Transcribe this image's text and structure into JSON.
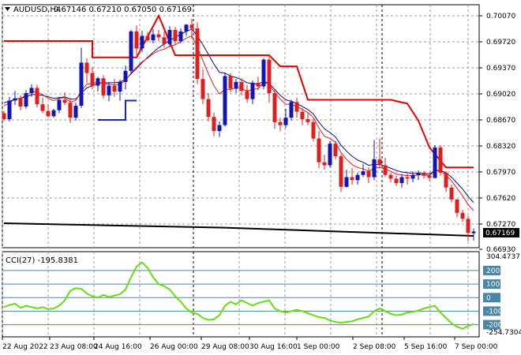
{
  "header": {
    "symbol": "AUDUSD,H4",
    "values": "0.67146 0.67210 0.67050 0.67169"
  },
  "price_axis": {
    "labels": [
      "0.70070",
      "0.69720",
      "0.69370",
      "0.69020",
      "0.68670",
      "0.68320",
      "0.67970",
      "0.67620",
      "0.67270",
      "0.66930"
    ],
    "current_price": "0.67169"
  },
  "indicator": {
    "title": "CCI(27) -195.8381",
    "max_label": "304.4737",
    "min_label": "-254.7304",
    "levels": [
      "200",
      "100",
      "0",
      "-100",
      "-200"
    ]
  },
  "time_axis": {
    "labels": [
      "22 Aug 2022",
      "23 Aug 08:00",
      "24 Aug 16:00",
      "26 Aug 00:00",
      "29 Aug 08:00",
      "30 Aug 16:00",
      "1 Sep 00:00",
      "2 Sep 08:00",
      "5 Sep 16:00",
      "7 Sep 00:00"
    ]
  },
  "colors": {
    "bull": "#1414b4",
    "bear": "#e01e1e",
    "ema_fast": "#e01e1e",
    "ema_slow": "#0c0c78",
    "stop_line_red": "#e80000",
    "stop_line_blue": "#1428c8",
    "long_ma": "#000000",
    "cci": "#66dd11",
    "level_line": "#4a86a8",
    "grid": "#9a9a9a"
  },
  "chart_data": {
    "type": "candlestick",
    "candles": [
      [
        0.6876,
        0.6879,
        0.6866,
        0.6868
      ],
      [
        0.6868,
        0.6898,
        0.6865,
        0.6893
      ],
      [
        0.6893,
        0.6906,
        0.6887,
        0.6896
      ],
      [
        0.6896,
        0.69,
        0.688,
        0.6885
      ],
      [
        0.6885,
        0.6907,
        0.6882,
        0.6903
      ],
      [
        0.6903,
        0.6915,
        0.6898,
        0.691
      ],
      [
        0.691,
        0.6914,
        0.6884,
        0.6888
      ],
      [
        0.6888,
        0.6897,
        0.6876,
        0.6879
      ],
      [
        0.6879,
        0.6888,
        0.687,
        0.6872
      ],
      [
        0.6872,
        0.6882,
        0.687,
        0.688
      ],
      [
        0.688,
        0.6898,
        0.6876,
        0.6894
      ],
      [
        0.6894,
        0.6904,
        0.6887,
        0.689
      ],
      [
        0.689,
        0.6897,
        0.6863,
        0.687
      ],
      [
        0.687,
        0.689,
        0.6866,
        0.6886
      ],
      [
        0.6886,
        0.6964,
        0.6883,
        0.6944
      ],
      [
        0.6944,
        0.695,
        0.6917,
        0.693
      ],
      [
        0.693,
        0.6938,
        0.6908,
        0.6913
      ],
      [
        0.6913,
        0.6925,
        0.6905,
        0.6923
      ],
      [
        0.6923,
        0.6927,
        0.6896,
        0.69
      ],
      [
        0.69,
        0.6918,
        0.6892,
        0.6913
      ],
      [
        0.6913,
        0.6922,
        0.6898,
        0.6905
      ],
      [
        0.6905,
        0.6921,
        0.6893,
        0.6918
      ],
      [
        0.6918,
        0.694,
        0.6908,
        0.6933
      ],
      [
        0.6933,
        0.6988,
        0.6929,
        0.6986
      ],
      [
        0.6986,
        0.6994,
        0.6954,
        0.6963
      ],
      [
        0.6963,
        0.6987,
        0.6958,
        0.698
      ],
      [
        0.698,
        0.6985,
        0.6972,
        0.6974
      ],
      [
        0.6974,
        0.6989,
        0.697,
        0.6982
      ],
      [
        0.6982,
        0.6988,
        0.6973,
        0.6978
      ],
      [
        0.6978,
        0.6986,
        0.6964,
        0.6969
      ],
      [
        0.6969,
        0.6993,
        0.6965,
        0.6988
      ],
      [
        0.6988,
        0.6992,
        0.6968,
        0.6973
      ],
      [
        0.6973,
        0.699,
        0.697,
        0.6986
      ],
      [
        0.6986,
        0.6996,
        0.698,
        0.6995
      ],
      [
        0.6995,
        0.7003,
        0.6976,
        0.699
      ],
      [
        0.699,
        0.6998,
        0.6915,
        0.6922
      ],
      [
        0.6922,
        0.6935,
        0.6888,
        0.6895
      ],
      [
        0.6895,
        0.6903,
        0.6865,
        0.6871
      ],
      [
        0.6871,
        0.6877,
        0.6845,
        0.6852
      ],
      [
        0.6852,
        0.6865,
        0.6844,
        0.686
      ],
      [
        0.686,
        0.693,
        0.6858,
        0.6926
      ],
      [
        0.6926,
        0.693,
        0.6904,
        0.6909
      ],
      [
        0.6909,
        0.6922,
        0.6903,
        0.6918
      ],
      [
        0.6918,
        0.6923,
        0.69,
        0.6906
      ],
      [
        0.6906,
        0.6914,
        0.689,
        0.6895
      ],
      [
        0.6895,
        0.692,
        0.6888,
        0.6917
      ],
      [
        0.6917,
        0.6925,
        0.6907,
        0.6912
      ],
      [
        0.6912,
        0.695,
        0.6908,
        0.6948
      ],
      [
        0.6948,
        0.6952,
        0.689,
        0.6903
      ],
      [
        0.6903,
        0.6909,
        0.6855,
        0.6864
      ],
      [
        0.6864,
        0.687,
        0.6852,
        0.686
      ],
      [
        0.686,
        0.6882,
        0.6856,
        0.687
      ],
      [
        0.687,
        0.6894,
        0.6866,
        0.6891
      ],
      [
        0.6891,
        0.6897,
        0.687,
        0.6878
      ],
      [
        0.6878,
        0.6883,
        0.686,
        0.6868
      ],
      [
        0.6868,
        0.6876,
        0.686,
        0.6864
      ],
      [
        0.6864,
        0.6868,
        0.6838,
        0.6842
      ],
      [
        0.6842,
        0.6852,
        0.6802,
        0.681
      ],
      [
        0.681,
        0.682,
        0.68,
        0.6806
      ],
      [
        0.6806,
        0.6839,
        0.6803,
        0.6835
      ],
      [
        0.6835,
        0.6839,
        0.6814,
        0.6818
      ],
      [
        0.6818,
        0.6821,
        0.677,
        0.6777
      ],
      [
        0.6777,
        0.68,
        0.6776,
        0.679
      ],
      [
        0.679,
        0.6802,
        0.678,
        0.6786
      ],
      [
        0.6786,
        0.6796,
        0.678,
        0.6793
      ],
      [
        0.6793,
        0.6808,
        0.679,
        0.6798
      ],
      [
        0.6798,
        0.6803,
        0.6782,
        0.679
      ],
      [
        0.679,
        0.684,
        0.6786,
        0.6814
      ],
      [
        0.6814,
        0.6842,
        0.6802,
        0.6806
      ],
      [
        0.6806,
        0.6816,
        0.679,
        0.6793
      ],
      [
        0.6793,
        0.6796,
        0.6783,
        0.6788
      ],
      [
        0.6788,
        0.6792,
        0.6778,
        0.6782
      ],
      [
        0.6782,
        0.6794,
        0.6776,
        0.679
      ],
      [
        0.679,
        0.6795,
        0.678,
        0.6788
      ],
      [
        0.6788,
        0.6798,
        0.6783,
        0.6793
      ],
      [
        0.6793,
        0.6799,
        0.6786,
        0.6796
      ],
      [
        0.6796,
        0.6798,
        0.6788,
        0.6792
      ],
      [
        0.6792,
        0.6796,
        0.6785,
        0.6789
      ],
      [
        0.6789,
        0.6833,
        0.6788,
        0.683
      ],
      [
        0.683,
        0.6833,
        0.6792,
        0.6796
      ],
      [
        0.6796,
        0.6798,
        0.677,
        0.6776
      ],
      [
        0.6776,
        0.678,
        0.6756,
        0.676
      ],
      [
        0.676,
        0.6761,
        0.6736,
        0.6742
      ],
      [
        0.6742,
        0.6746,
        0.673,
        0.6734
      ],
      [
        0.6734,
        0.6738,
        0.6704,
        0.6715
      ],
      [
        0.67146,
        0.6721,
        0.6705,
        0.67169
      ]
    ],
    "ema_fast": [
      0.6886,
      0.689,
      0.6895,
      0.6896,
      0.69,
      0.6905,
      0.6904,
      0.6901,
      0.6896,
      0.6893,
      0.6896,
      0.6897,
      0.6891,
      0.6893,
      0.6906,
      0.6915,
      0.6916,
      0.6918,
      0.6916,
      0.6915,
      0.6914,
      0.6915,
      0.692,
      0.693,
      0.6938,
      0.6945,
      0.695,
      0.6956,
      0.696,
      0.6962,
      0.6966,
      0.6968,
      0.6972,
      0.6977,
      0.698,
      0.6965,
      0.6947,
      0.6929,
      0.6913,
      0.6902,
      0.6908,
      0.6908,
      0.691,
      0.6909,
      0.6906,
      0.6908,
      0.6909,
      0.6918,
      0.6915,
      0.6904,
      0.6895,
      0.6888,
      0.6888,
      0.6885,
      0.6881,
      0.6877,
      0.687,
      0.6856,
      0.6845,
      0.6842,
      0.6837,
      0.6823,
      0.6814,
      0.6807,
      0.6803,
      0.6801,
      0.6798,
      0.6802,
      0.6803,
      0.6801,
      0.6798,
      0.6794,
      0.6793,
      0.6792,
      0.6792,
      0.6793,
      0.6793,
      0.6792,
      0.6799,
      0.6798,
      0.6793,
      0.6785,
      0.6775,
      0.6765,
      0.6753,
      0.6745
    ],
    "ema_slow": [
      0.689,
      0.6892,
      0.6895,
      0.6896,
      0.6898,
      0.6901,
      0.6901,
      0.69,
      0.6898,
      0.6896,
      0.6897,
      0.6898,
      0.6895,
      0.6895,
      0.6903,
      0.691,
      0.6913,
      0.6916,
      0.6917,
      0.6917,
      0.6917,
      0.6918,
      0.6921,
      0.6929,
      0.6936,
      0.6944,
      0.6951,
      0.6958,
      0.6964,
      0.6969,
      0.6974,
      0.6978,
      0.6982,
      0.6986,
      0.6989,
      0.698,
      0.6968,
      0.6955,
      0.6942,
      0.6931,
      0.693,
      0.6926,
      0.6924,
      0.6921,
      0.6917,
      0.6916,
      0.6915,
      0.6919,
      0.6916,
      0.6908,
      0.69,
      0.6894,
      0.6892,
      0.6889,
      0.6885,
      0.6881,
      0.6875,
      0.6864,
      0.6855,
      0.685,
      0.6844,
      0.6833,
      0.6825,
      0.6818,
      0.6813,
      0.681,
      0.6806,
      0.6807,
      0.6807,
      0.6805,
      0.6802,
      0.6799,
      0.6797,
      0.6796,
      0.6795,
      0.6795,
      0.6795,
      0.6794,
      0.6799,
      0.6799,
      0.6796,
      0.679,
      0.6782,
      0.6774,
      0.6764,
      0.6756
    ],
    "stop_red": [
      [
        0,
        0.6973
      ],
      [
        16,
        0.6973
      ],
      [
        16,
        0.6951
      ],
      [
        24,
        0.6951
      ],
      [
        28,
        0.7007
      ],
      [
        31,
        0.6954
      ],
      [
        48,
        0.6954
      ],
      [
        50,
        0.6939
      ],
      [
        53,
        0.6939
      ],
      [
        55,
        0.6894
      ],
      [
        70,
        0.6894
      ],
      [
        73,
        0.6889
      ],
      [
        75,
        0.6866
      ],
      [
        77,
        0.683
      ],
      [
        80,
        0.6803
      ],
      [
        85,
        0.6803
      ]
    ],
    "stop_blue": [
      [
        17,
        0.6867
      ],
      [
        22,
        0.6867
      ],
      [
        22,
        0.6893
      ],
      [
        24,
        0.6893
      ]
    ],
    "long_ma": [
      [
        0,
        0.6728
      ],
      [
        20,
        0.6725
      ],
      [
        40,
        0.6722
      ],
      [
        60,
        0.6717
      ],
      [
        85,
        0.6711
      ]
    ],
    "cci": [
      -70,
      -55,
      -45,
      -75,
      -60,
      -70,
      -80,
      -70,
      -85,
      -80,
      -60,
      -20,
      50,
      70,
      65,
      30,
      10,
      0,
      20,
      5,
      15,
      25,
      60,
      150,
      230,
      260,
      220,
      150,
      100,
      85,
      60,
      10,
      -30,
      -80,
      -110,
      -120,
      -150,
      -165,
      -160,
      -130,
      -60,
      -30,
      -50,
      -20,
      -40,
      -60,
      -40,
      -30,
      -20,
      -80,
      -100,
      -110,
      -100,
      -90,
      -100,
      -115,
      -130,
      -145,
      -150,
      -170,
      -180,
      -185,
      -180,
      -175,
      -160,
      -150,
      -140,
      -100,
      -80,
      -100,
      -120,
      -130,
      -125,
      -110,
      -105,
      -95,
      -80,
      -70,
      -60,
      -110,
      -150,
      -190,
      -215,
      -230,
      -210,
      -195
    ],
    "price_ticks": [
      0.7007,
      0.6972,
      0.6937,
      0.6902,
      0.6867,
      0.6832,
      0.6797,
      0.6762,
      0.6727,
      0.6693
    ],
    "cci_levels": [
      200,
      100,
      0,
      -100,
      -200
    ],
    "cci_range": [
      -254.7304,
      304.4737
    ],
    "grid": true
  }
}
